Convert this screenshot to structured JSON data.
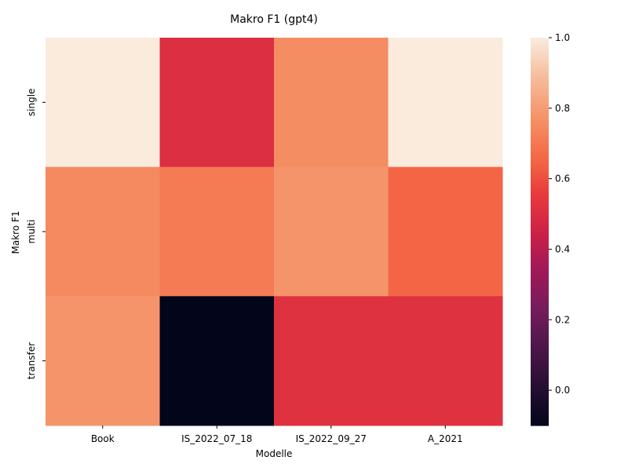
{
  "chart_data": {
    "type": "heatmap",
    "title": "Makro F1 (gpt4)",
    "xlabel": "Modelle",
    "ylabel": "Makro F1",
    "x_categories": [
      "Book",
      "IS_2022_07_18",
      "IS_2022_09_27",
      "A_2021"
    ],
    "y_categories": [
      "single",
      "multi",
      "transfer"
    ],
    "values": [
      [
        1.0,
        0.51,
        0.76,
        1.0
      ],
      [
        0.75,
        0.71,
        0.78,
        0.65
      ],
      [
        0.78,
        -0.1,
        0.52,
        0.52
      ]
    ],
    "colorbar": {
      "vmin": -0.1,
      "vmax": 1.0,
      "ticks": [
        "0.0",
        "0.2",
        "0.4",
        "0.6",
        "0.8",
        "1.0"
      ],
      "colormap": "rocket"
    }
  }
}
